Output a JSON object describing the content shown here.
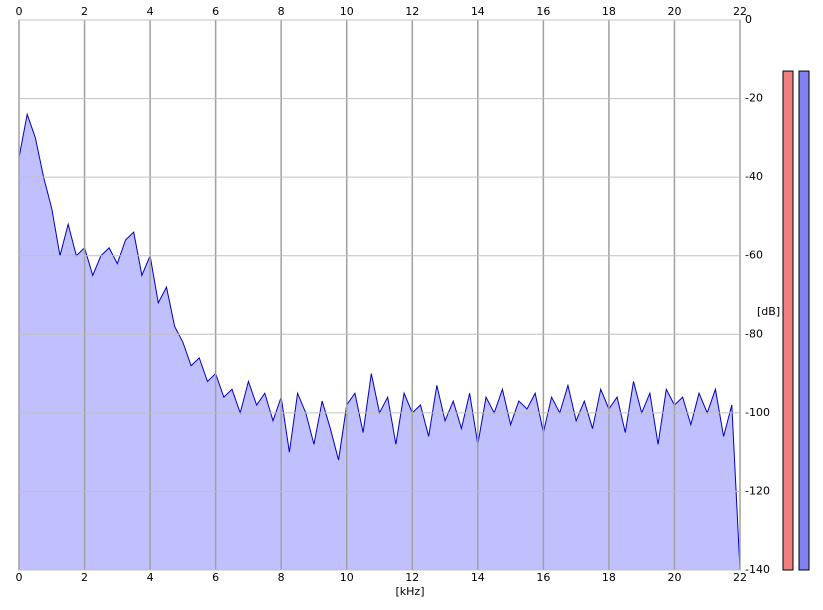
{
  "chart_data": {
    "type": "area",
    "xlabel": "[kHz]",
    "ylabel": "[dB]",
    "xlim": [
      0,
      22
    ],
    "ylim": [
      -140,
      0
    ],
    "xticks": [
      0,
      2,
      4,
      6,
      8,
      10,
      12,
      14,
      16,
      18,
      20,
      22
    ],
    "yticks": [
      0,
      -20,
      -40,
      -60,
      -80,
      -100,
      -120,
      -140
    ],
    "grid": true,
    "x": [
      0,
      0.25,
      0.5,
      0.75,
      1,
      1.25,
      1.5,
      1.75,
      2,
      2.25,
      2.5,
      2.75,
      3,
      3.25,
      3.5,
      3.75,
      4,
      4.25,
      4.5,
      4.75,
      5,
      5.25,
      5.5,
      5.75,
      6,
      6.25,
      6.5,
      6.75,
      7,
      7.25,
      7.5,
      7.75,
      8,
      8.25,
      8.5,
      8.75,
      9,
      9.25,
      9.5,
      9.75,
      10,
      10.25,
      10.5,
      10.75,
      11,
      11.25,
      11.5,
      11.75,
      12,
      12.25,
      12.5,
      12.75,
      13,
      13.25,
      13.5,
      13.75,
      14,
      14.25,
      14.5,
      14.75,
      15,
      15.25,
      15.5,
      15.75,
      16,
      16.25,
      16.5,
      16.75,
      17,
      17.25,
      17.5,
      17.75,
      18,
      18.25,
      18.5,
      18.75,
      19,
      19.25,
      19.5,
      19.75,
      20,
      20.25,
      20.5,
      20.75,
      21,
      21.25,
      21.5,
      21.75,
      22
    ],
    "series": [
      {
        "color": "#0000c0",
        "fill": "#c0c0ff",
        "values": [
          -35,
          -24,
          -30,
          -40,
          -48,
          -60,
          -52,
          -60,
          -58,
          -65,
          -60,
          -58,
          -62,
          -56,
          -54,
          -65,
          -60,
          -72,
          -68,
          -78,
          -82,
          -88,
          -86,
          -92,
          -90,
          -96,
          -94,
          -100,
          -92,
          -98,
          -95,
          -102,
          -96,
          -110,
          -95,
          -100,
          -108,
          -97,
          -104,
          -112,
          -98,
          -95,
          -105,
          -90,
          -100,
          -96,
          -108,
          -95,
          -100,
          -98,
          -106,
          -93,
          -102,
          -97,
          -104,
          -95,
          -108,
          -96,
          -100,
          -94,
          -103,
          -97,
          -99,
          -95,
          -105,
          -96,
          -100,
          -93,
          -102,
          -97,
          -104,
          -94,
          -99,
          -96,
          -105,
          -92,
          -100,
          -95,
          -108,
          -94,
          -98,
          -96,
          -103,
          -95,
          -100,
          -94,
          -106,
          -98,
          -140
        ]
      }
    ],
    "meters": [
      {
        "color": "#f08080",
        "value": -13
      },
      {
        "color": "#8080f0",
        "value": -13
      }
    ]
  }
}
